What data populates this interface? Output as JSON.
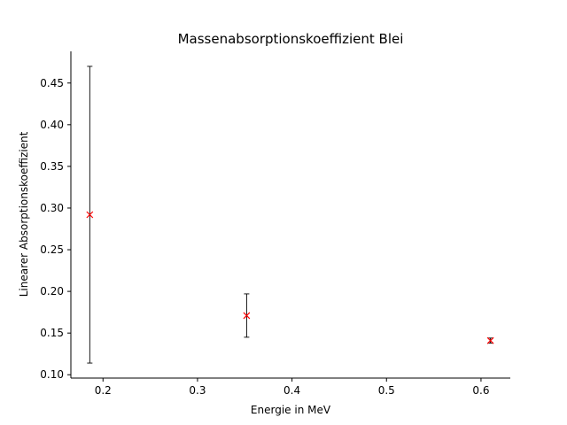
{
  "chart_data": {
    "type": "scatter",
    "title": "Massenabsorptionskoeffizient Blei",
    "xlabel": "Energie in MeV",
    "ylabel": "Linearer Absorptionskoeffizient",
    "xlim": [
      0.166,
      0.631
    ],
    "ylim": [
      0.096,
      0.488
    ],
    "x_ticks": [
      0.2,
      0.3,
      0.4,
      0.5,
      0.6
    ],
    "x_tick_labels": [
      "0.2",
      "0.3",
      "0.4",
      "0.5",
      "0.6"
    ],
    "y_ticks": [
      0.1,
      0.15,
      0.2,
      0.25,
      0.3,
      0.35,
      0.4,
      0.45
    ],
    "y_tick_labels": [
      "0.10",
      "0.15",
      "0.20",
      "0.25",
      "0.30",
      "0.35",
      "0.40",
      "0.45"
    ],
    "grid": false,
    "legend": "none",
    "marker": "x",
    "marker_color": "#ff0000",
    "errorbar_color": "#000000",
    "series": [
      {
        "x": [
          0.186,
          0.352,
          0.61
        ],
        "y": [
          0.292,
          0.171,
          0.141
        ],
        "yerr": [
          0.178,
          0.026,
          0.003
        ]
      }
    ]
  }
}
